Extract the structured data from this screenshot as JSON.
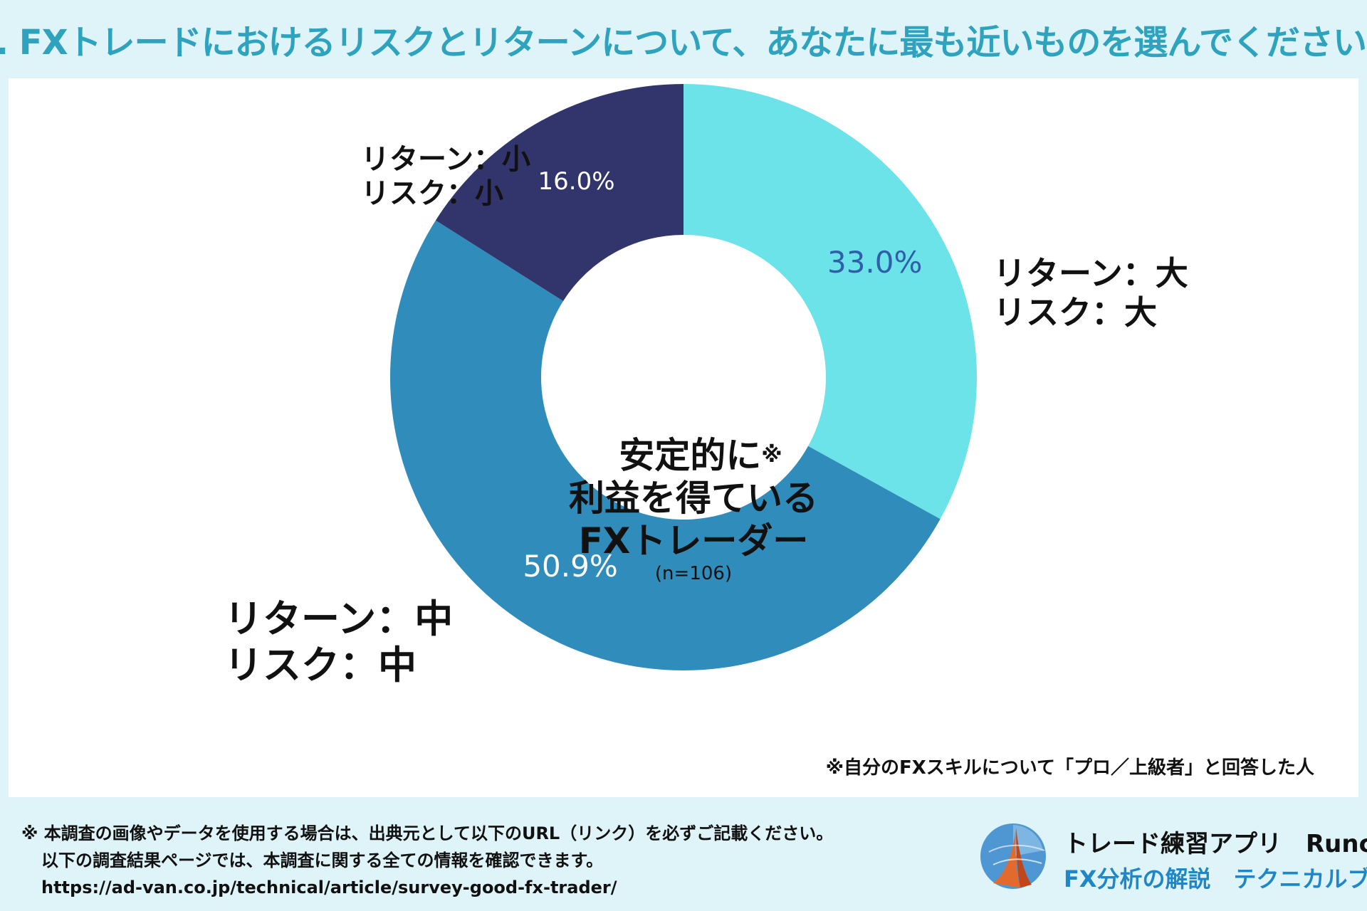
{
  "title": "Q. FXトレードにおけるリスクとリターンについて、あなたに最も近いものを選んでください。",
  "chart_data": {
    "type": "pie",
    "donut": true,
    "center_text": [
      "安定的に",
      "利益を得ている",
      "FXトレーダー"
    ],
    "center_mark": "※",
    "sample_size": "(n=106)",
    "segments": [
      {
        "name": "リターン：大 リスク：大",
        "label_lines": [
          "リターン：大",
          "リスク：大"
        ],
        "value": 33.0,
        "value_label": "33.0%",
        "color": "#6be3e8",
        "value_color": "#2f5fa8"
      },
      {
        "name": "リターン：中 リスク：中",
        "label_lines": [
          "リターン：中",
          "リスク：中"
        ],
        "value": 50.9,
        "value_label": "50.9%",
        "color": "#2f8cbb",
        "value_color": "#ffffff"
      },
      {
        "name": "リターン：小 リスク：小",
        "label_lines": [
          "リターン：小",
          "リスク：小"
        ],
        "value": 16.0,
        "value_label": "16.0%",
        "color": "#32346c",
        "value_color": "#ffffff"
      }
    ]
  },
  "chart_footnote": "※自分のFXスキルについて「プロ／上級者」と回答した人",
  "notice": {
    "line1": "※ 本調査の画像やデータを使用する場合は、出典元として以下のURL（リンク）を必ずご記載ください。",
    "line2": "以下の調査結果ページでは、本調査に関する全ての情報を確認できます。",
    "url": "https://ad-van.co.jp/technical/article/survey-good-fx-trader/"
  },
  "brand": {
    "name": "トレード練習アプリ　Runcha",
    "subtitle": "FX分析の解説　テクニカルブック",
    "logo_icon": "runcha-logo-icon"
  }
}
